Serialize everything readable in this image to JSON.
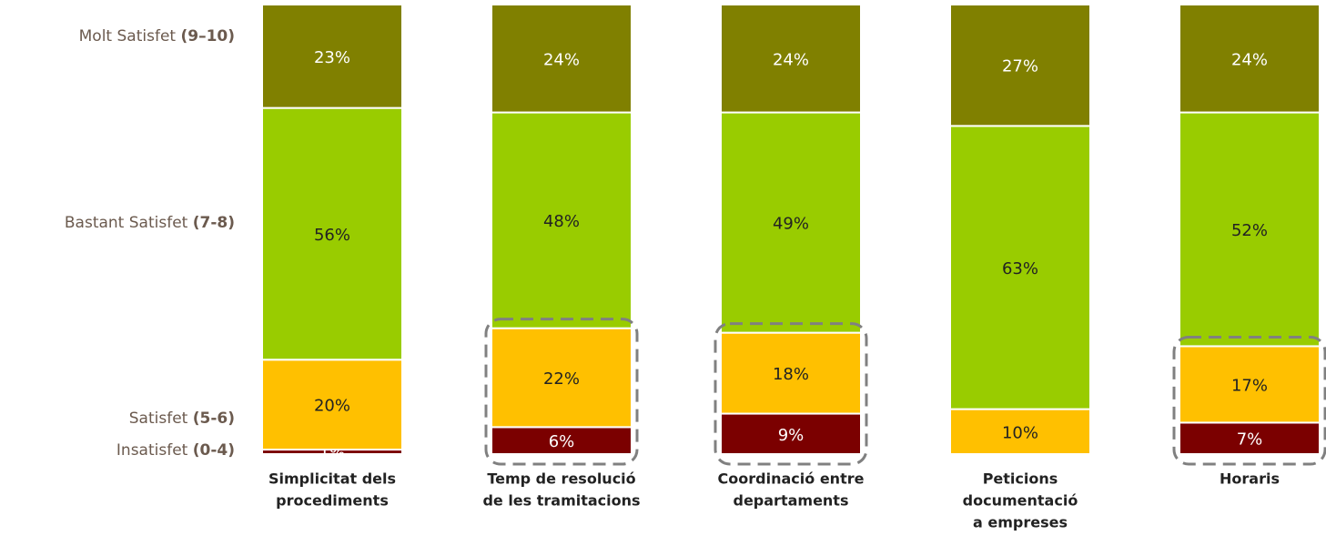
{
  "chart_data": {
    "type": "stacked_bar_100",
    "categories": [
      [
        "Simplicitat dels",
        "procediments"
      ],
      [
        "Temp de resolució",
        "de les tramitacions"
      ],
      [
        "Coordinació entre",
        "departaments"
      ],
      [
        "Peticions",
        "documentació",
        "a empreses"
      ],
      [
        "Horaris"
      ]
    ],
    "series": [
      {
        "name": "Insatisfet (0-4)",
        "color": "#7b0000",
        "values": [
          1,
          6,
          9,
          null,
          7
        ],
        "value_labels": [
          "1%",
          "6%",
          "9%",
          null,
          "7%"
        ]
      },
      {
        "name": "Satisfet (5-6)",
        "color": "#ffc000",
        "values": [
          20,
          22,
          18,
          10,
          17
        ],
        "value_labels": [
          "20%",
          "22%",
          "18%",
          "10%",
          "17%"
        ]
      },
      {
        "name": "Bastant Satisfet  (7-8)",
        "color": "#99cc00",
        "values": [
          56,
          48,
          49,
          63,
          52
        ],
        "value_labels": [
          "56%",
          "48%",
          "49%",
          "63%",
          "52%"
        ]
      },
      {
        "name": "Molt Satisfet  (9–10)",
        "color": "#808000",
        "values": [
          23,
          24,
          24,
          27,
          24
        ],
        "value_labels": [
          "23%",
          "24%",
          "24%",
          "27%",
          "24%"
        ]
      }
    ],
    "highlight": [
      1,
      2,
      4
    ]
  }
}
